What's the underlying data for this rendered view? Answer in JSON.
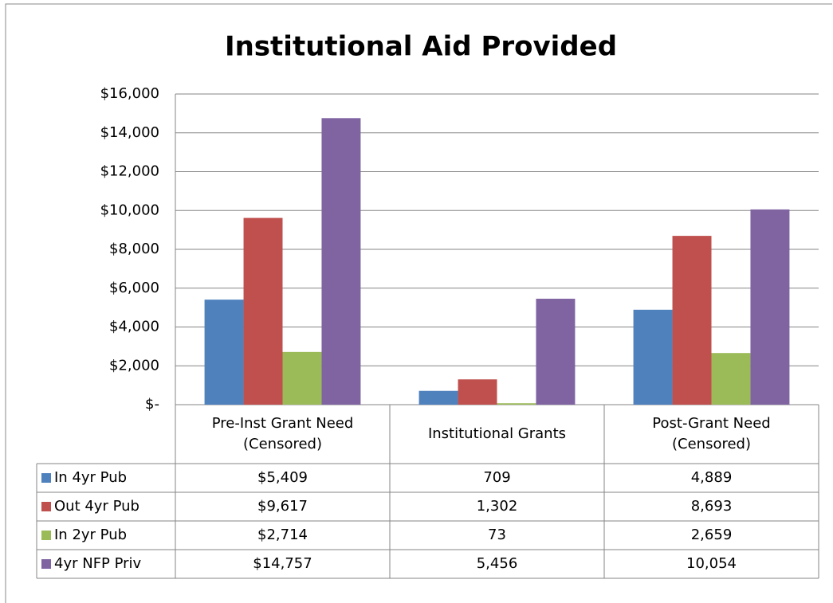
{
  "chart_data": {
    "type": "bar",
    "title": "Institutional Aid Provided",
    "categories": [
      "Pre-Inst Grant Need (Censored)",
      "Institutional Grants",
      "Post-Grant Need (Censored)"
    ],
    "series": [
      {
        "name": "In 4yr Pub",
        "color": "#4f81bd",
        "values": [
          5409,
          709,
          4889
        ],
        "value_labels": [
          "$5,409",
          "709",
          "4,889"
        ]
      },
      {
        "name": "Out 4yr Pub",
        "color": "#c0504d",
        "values": [
          9617,
          1302,
          8693
        ],
        "value_labels": [
          "$9,617",
          "1,302",
          "8,693"
        ]
      },
      {
        "name": "In 2yr Pub",
        "color": "#9bbb59",
        "values": [
          2714,
          73,
          2659
        ],
        "value_labels": [
          "$2,714",
          "73",
          "2,659"
        ]
      },
      {
        "name": "4yr NFP Priv",
        "color": "#8064a2",
        "values": [
          14757,
          5456,
          10054
        ],
        "value_labels": [
          "$14,757",
          "5,456",
          "10,054"
        ]
      }
    ],
    "ylim": [
      0,
      16000
    ],
    "yticks": [
      {
        "value": 0,
        "label": "$-"
      },
      {
        "value": 2000,
        "label": "$2,000"
      },
      {
        "value": 4000,
        "label": "$4,000"
      },
      {
        "value": 6000,
        "label": "$6,000"
      },
      {
        "value": 8000,
        "label": "$8,000"
      },
      {
        "value": 10000,
        "label": "$10,000"
      },
      {
        "value": 12000,
        "label": "$12,000"
      },
      {
        "value": 14000,
        "label": "$14,000"
      },
      {
        "value": 16000,
        "label": "$16,000"
      }
    ],
    "grid": true
  }
}
